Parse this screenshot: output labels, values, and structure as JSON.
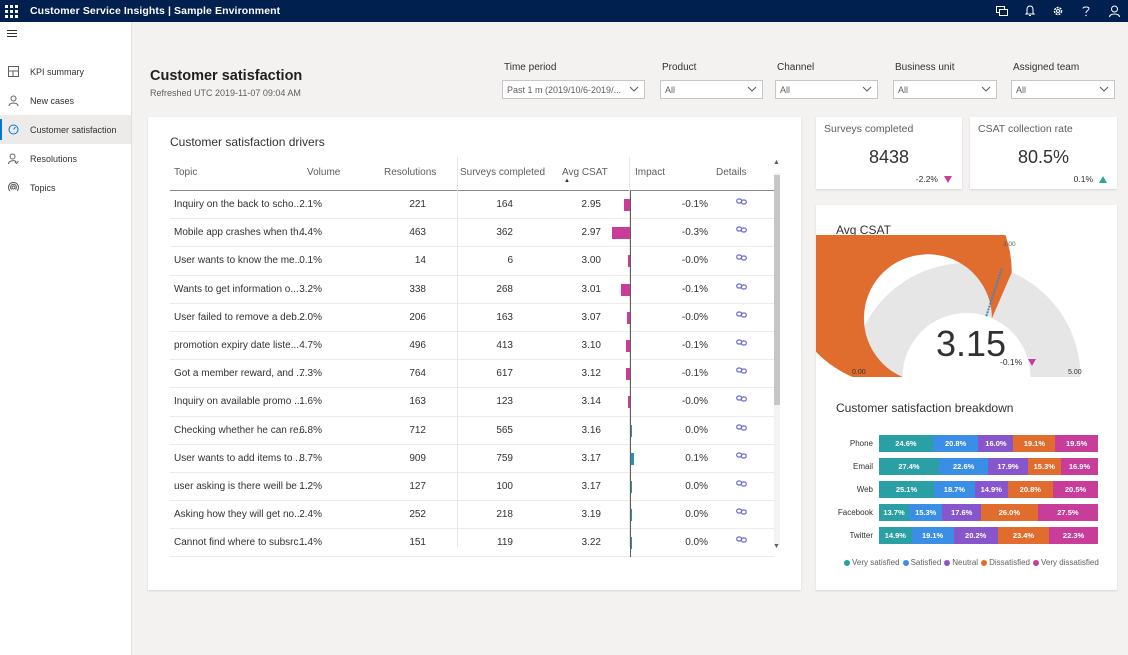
{
  "app": {
    "title": "Customer Service Insights | Sample Environment"
  },
  "top_icons": [
    "chat-icon",
    "bell-icon",
    "gear-icon",
    "help-icon",
    "user-icon"
  ],
  "sidebar": {
    "items": [
      {
        "label": "KPI summary",
        "icon": "dashboard-icon",
        "active": false
      },
      {
        "label": "New cases",
        "icon": "person-icon",
        "active": false
      },
      {
        "label": "Customer satisfaction",
        "icon": "gauge-icon",
        "active": true
      },
      {
        "label": "Resolutions",
        "icon": "resolution-icon",
        "active": false
      },
      {
        "label": "Topics",
        "icon": "topics-icon",
        "active": false
      }
    ]
  },
  "header": {
    "title": "Customer satisfaction",
    "refreshed": "Refreshed UTC 2019-11-07 09:04 AM"
  },
  "filters": [
    {
      "label": "Time period",
      "value": "Past 1 m (2019/10/6-2019/..."
    },
    {
      "label": "Product",
      "value": "All"
    },
    {
      "label": "Channel",
      "value": "All"
    },
    {
      "label": "Business unit",
      "value": "All"
    },
    {
      "label": "Assigned team",
      "value": "All"
    }
  ],
  "drivers": {
    "title": "Customer satisfaction drivers",
    "columns": [
      "Topic",
      "Volume",
      "Resolutions",
      "Surveys completed",
      "Avg CSAT",
      "Impact",
      "Details"
    ],
    "rows": [
      {
        "topic": "Inquiry on the back to scho...",
        "volume": "2.1%",
        "resolutions": "221",
        "surveys": "164",
        "avg": "2.95",
        "impact_label": "-0.1%",
        "impact": -0.1
      },
      {
        "topic": "Mobile app crashes when th...",
        "volume": "4.4%",
        "resolutions": "463",
        "surveys": "362",
        "avg": "2.97",
        "impact_label": "-0.3%",
        "impact": -0.3
      },
      {
        "topic": "User wants to know the me...",
        "volume": "0.1%",
        "resolutions": "14",
        "surveys": "6",
        "avg": "3.00",
        "impact_label": "-0.0%",
        "impact": -0.004
      },
      {
        "topic": "Wants to get information o...",
        "volume": "3.2%",
        "resolutions": "338",
        "surveys": "268",
        "avg": "3.01",
        "impact_label": "-0.1%",
        "impact": -0.15
      },
      {
        "topic": "User failed to remove a deb...",
        "volume": "2.0%",
        "resolutions": "206",
        "surveys": "163",
        "avg": "3.07",
        "impact_label": "-0.0%",
        "impact": -0.05
      },
      {
        "topic": "promotion expiry date liste...",
        "volume": "4.7%",
        "resolutions": "496",
        "surveys": "413",
        "avg": "3.10",
        "impact_label": "-0.1%",
        "impact": -0.07
      },
      {
        "topic": "Got a member reward, and ...",
        "volume": "7.3%",
        "resolutions": "764",
        "surveys": "617",
        "avg": "3.12",
        "impact_label": "-0.1%",
        "impact": -0.07
      },
      {
        "topic": "Inquiry on available promo ...",
        "volume": "1.6%",
        "resolutions": "163",
        "surveys": "123",
        "avg": "3.14",
        "impact_label": "-0.0%",
        "impact": -0.004
      },
      {
        "topic": "Checking whether he can re...",
        "volume": "6.8%",
        "resolutions": "712",
        "surveys": "565",
        "avg": "3.16",
        "impact_label": "0.0%",
        "impact": 0.03
      },
      {
        "topic": "User wants to add items to ...",
        "volume": "8.7%",
        "resolutions": "909",
        "surveys": "759",
        "avg": "3.17",
        "impact_label": "0.1%",
        "impact": 0.07
      },
      {
        "topic": "user asking is there weill be ...",
        "volume": "1.2%",
        "resolutions": "127",
        "surveys": "100",
        "avg": "3.17",
        "impact_label": "0.0%",
        "impact": 0.005
      },
      {
        "topic": "Asking how they will get no...",
        "volume": "2.4%",
        "resolutions": "252",
        "surveys": "218",
        "avg": "3.19",
        "impact_label": "0.0%",
        "impact": 0.03
      },
      {
        "topic": "Cannot find where to subsrc...",
        "volume": "1.4%",
        "resolutions": "151",
        "surveys": "119",
        "avg": "3.22",
        "impact_label": "0.0%",
        "impact": 0.03
      }
    ]
  },
  "kpis": [
    {
      "title": "Surveys completed",
      "value": "8438",
      "delta": "-2.2%",
      "direction": "down"
    },
    {
      "title": "CSAT collection rate",
      "value": "80.5%",
      "delta": "0.1%",
      "direction": "up"
    }
  ],
  "avg_csat": {
    "title": "Avg CSAT",
    "value": "3.15",
    "delta": "-0.1%",
    "min": 0,
    "max": 5,
    "min_label": "0.00",
    "max_label": "5.00",
    "target": 3.0,
    "target_label": "3.00",
    "fill_value": 3.15,
    "fill_color": "#e06c2e",
    "bg_color": "#e6e6e6",
    "target_color": "#3b87c4"
  },
  "chart_data": {
    "type": "bar",
    "title": "Customer satisfaction breakdown",
    "stacked": true,
    "orientation": "horizontal",
    "categories": [
      "Phone",
      "Email",
      "Web",
      "Facebook",
      "Twitter"
    ],
    "series": [
      {
        "name": "Very satisfied",
        "color": "#2aa0a4",
        "values": [
          24.6,
          27.4,
          25.1,
          13.7,
          14.9
        ],
        "labels": [
          "24.6%",
          "27.4%",
          "25.1%",
          "13.7%",
          "14.9%"
        ]
      },
      {
        "name": "Satisfied",
        "color": "#3a8ee6",
        "values": [
          20.8,
          22.6,
          18.7,
          15.3,
          19.1
        ],
        "labels": [
          "20.8%",
          "22.6%",
          "18.7%",
          "15.3%",
          "19.1%"
        ]
      },
      {
        "name": "Neutral",
        "color": "#8856cc",
        "values": [
          16.0,
          17.9,
          14.9,
          17.6,
          20.2
        ],
        "labels": [
          "16.0%",
          "17.9%",
          "14.9%",
          "17.6%",
          "20.2%"
        ]
      },
      {
        "name": "Dissatisfied",
        "color": "#e06c2e",
        "values": [
          19.1,
          15.3,
          20.8,
          26.0,
          23.4
        ],
        "labels": [
          "19.1%",
          "15.3%",
          "20.8%",
          "26.0%",
          "23.4%"
        ]
      },
      {
        "name": "Very dissatisfied",
        "color": "#c83c9a",
        "values": [
          19.5,
          16.9,
          20.5,
          27.5,
          22.3
        ],
        "labels": [
          "19.5%",
          "16.9%",
          "20.5%",
          "27.5%",
          "22.3%"
        ]
      }
    ],
    "legend": "bottom"
  }
}
